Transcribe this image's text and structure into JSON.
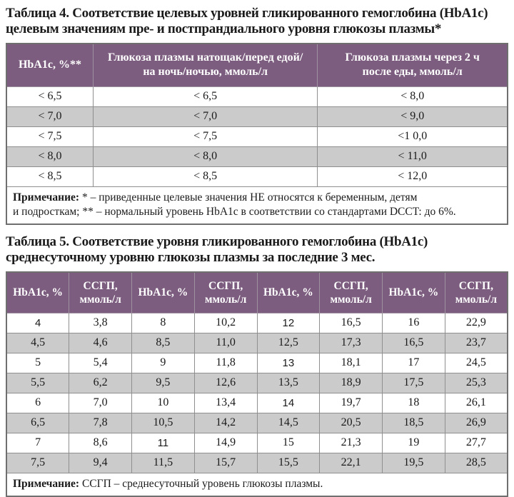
{
  "colors": {
    "header_bg": "#7c5d7f",
    "header_text": "#ffffff",
    "row_alt_bg": "#cbcbcb",
    "border": "#8f8f8f",
    "outer_border": "#6f6f6f"
  },
  "table4": {
    "title": "Таблица 4. Соответствие целевых уровней гликированного гемоглобина (HbA1c) целевым значениям пре- и постпрандиального уровня глюкозы плазмы*",
    "headers": [
      "HbA1c, %**",
      "Глюкоза плазмы натощак/перед едой/\nна ночь/ночью, ммоль/л",
      "Глюкоза плазмы через 2 ч\nпосле еды, ммоль/л"
    ],
    "col_widths_pct": [
      17.3,
      44.8,
      37.9
    ],
    "rows": [
      [
        "< 6,5",
        "< 6,5",
        "< 8,0"
      ],
      [
        "< 7,0",
        "< 7,0",
        "< 9,0"
      ],
      [
        "< 7,5",
        "< 7,5",
        "<1 0,0"
      ],
      [
        "< 8,0",
        "< 8,0",
        "< 11,0"
      ],
      [
        "< 8,5",
        "< 8,5",
        "< 12,0"
      ]
    ],
    "sans_cells": [],
    "note_label": "Примечание:",
    "note_text": " * – приведенные целевые значения НЕ относятся к беременным, детям\nи подросткам; ** – нормальный уровень HbA1c в соответствии со стандартами DCCT: до 6%."
  },
  "table5": {
    "title": "Таблица 5. Соответствие уровня гликированного гемоглобина (HbA1c) среднесуточному уровню глюкозы плазмы за последние 3 мес.",
    "headers": [
      "HbA1c, %",
      "ССГП,\nммоль/л",
      "HbA1c, %",
      "ССГП,\nммоль/л",
      "HbA1c, %",
      "ССГП,\nммоль/л",
      "HbA1c, %",
      "ССГП,\nммоль/л"
    ],
    "col_widths_pct": [
      12.5,
      12.5,
      12.5,
      12.5,
      12.5,
      12.5,
      12.5,
      12.5
    ],
    "rows": [
      [
        "4",
        "3,8",
        "8",
        "10,2",
        "12",
        "16,5",
        "16",
        "22,9"
      ],
      [
        "4,5",
        "4,6",
        "8,5",
        "11,0",
        "12,5",
        "17,3",
        "16,5",
        "23,7"
      ],
      [
        "5",
        "5,4",
        "9",
        "11,8",
        "13",
        "18,1",
        "17",
        "24,5"
      ],
      [
        "5,5",
        "6,2",
        "9,5",
        "12,6",
        "13,5",
        "18,9",
        "17,5",
        "25,3"
      ],
      [
        "6",
        "7,0",
        "10",
        "13,4",
        "14",
        "19,7",
        "18",
        "26,1"
      ],
      [
        "6,5",
        "7,8",
        "10,5",
        "14,2",
        "14,5",
        "20,5",
        "18,5",
        "26,9"
      ],
      [
        "7",
        "8,6",
        "11",
        "14,9",
        "15",
        "21,3",
        "19",
        "27,7"
      ],
      [
        "7,5",
        "9,4",
        "11,5",
        "15,7",
        "15,5",
        "22,1",
        "19,5",
        "28,5"
      ]
    ],
    "sans_cells": [
      [
        0,
        0
      ],
      [
        0,
        4
      ],
      [
        2,
        4
      ],
      [
        4,
        4
      ],
      [
        6,
        2
      ]
    ],
    "note_label": "Примечание:",
    "note_text": " ССГП – среднесуточный уровень глюкозы плазмы."
  }
}
